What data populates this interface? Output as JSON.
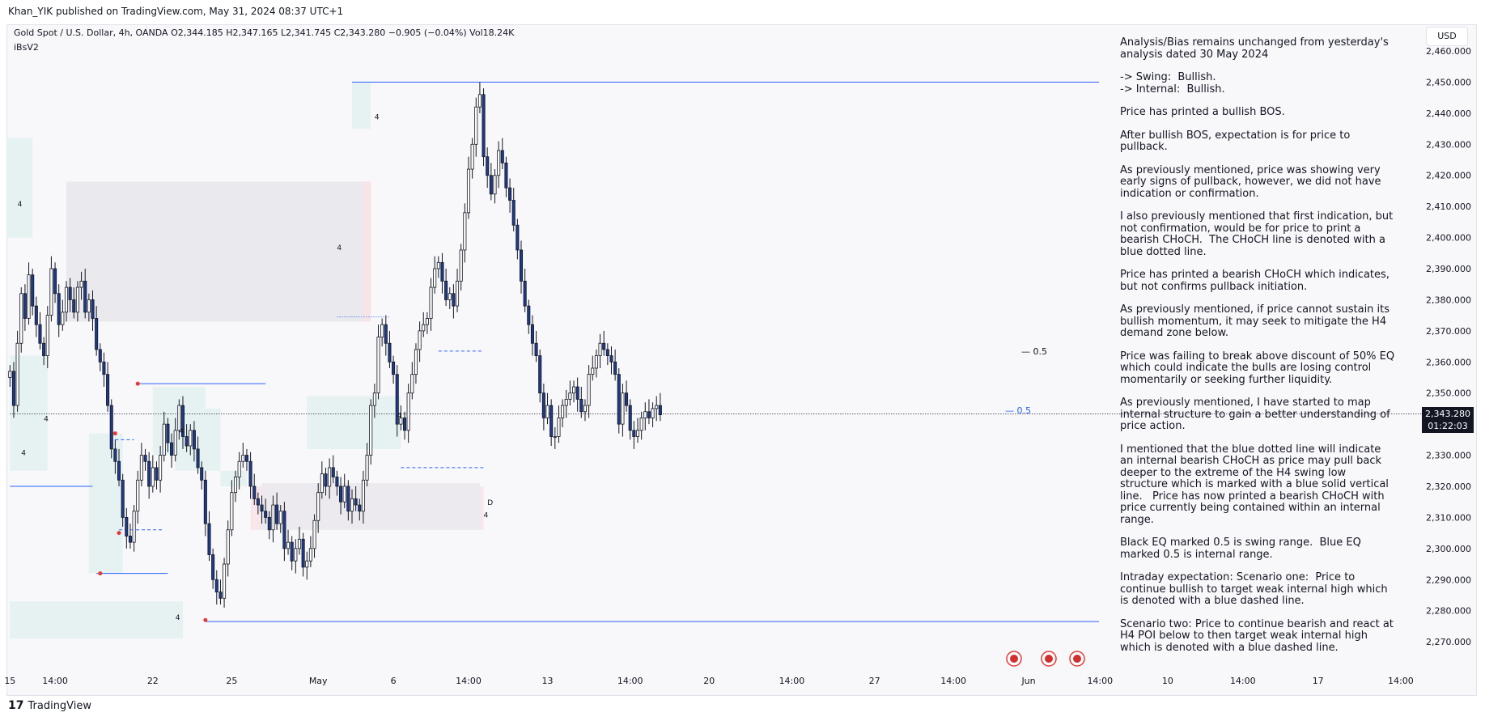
{
  "header": {
    "published_by": "Khan_YIK published on TradingView.com, May 31, 2024 08:37 UTC+1"
  },
  "legend": {
    "symbol_line": "Gold Spot / U.S. Dollar, 4h, OANDA  O2,344.185  H2,347.165  L2,341.745  C2,343.280  −0.905 (−0.04%)  Vol18.24K",
    "indicator": "iBsV2"
  },
  "currency": "USD",
  "current_price": {
    "price": "2,343.280",
    "countdown": "01:22:03"
  },
  "brand": {
    "logo": "17",
    "name": "TradingView"
  },
  "analysis": [
    "Analysis/Bias remains unchanged from yesterday's analysis dated 30 May 2024",
    "-> Swing:  Bullish.\n-> Internal:  Bullish.",
    "Price has printed a bullish BOS.",
    "After bullish BOS, expectation is for price to pullback.",
    "As previously mentioned, price was showing very early signs of pullback, however, we did not have indication or confirmation.",
    "I also previously mentioned that first indication, but not confirmation, would be for price to print a bearish CHoCH.  The CHoCH line is denoted with a blue dotted line.",
    "Price has printed a bearish CHoCH which indicates, but not confirms pullback initiation.",
    "As previously mentioned, if price cannot sustain its bullish momentum, it may seek to mitigate the H4 demand zone below.",
    "Price was failing to break above discount of 50% EQ which could indicate the bulls are losing control momentarily or seeking further liquidity.",
    "As previously mentioned, I have started to map internal structure to gain a better understanding of price action.",
    "I mentioned that the blue dotted line will indicate an internal bearish CHoCH as price may pull back deeper to the extreme of the H4 swing low structure which is marked with a blue solid vertical line.   Price has now printed a bearish CHoCH with price currently being contained within an internal range.",
    "Black EQ marked 0.5 is swing range.  Blue EQ marked 0.5 is internal range.",
    "Intraday expectation: Scenario one:  Price to continue bullish to target weak internal high which is denoted with a blue dashed line.",
    "Scenario two: Price to continue bearish and react at H4 POI below to then target weak internal high which is denoted with a blue dashed line."
  ],
  "chart_data": {
    "type": "candlestick",
    "symbol": "Gold Spot / U.S. Dollar",
    "timeframe": "4h",
    "y_ticks": [
      2270,
      2280,
      2290,
      2300,
      2310,
      2320,
      2330,
      2340,
      2350,
      2360,
      2370,
      2380,
      2390,
      2400,
      2410,
      2420,
      2430,
      2440,
      2450,
      2460
    ],
    "y_tick_labels": [
      "2,270.000",
      "2,280.000",
      "2,290.000",
      "2,300.000",
      "2,310.000",
      "2,320.000",
      "2,330.000",
      "2,340.000",
      "2,350.000",
      "2,360.000",
      "2,370.000",
      "2,380.000",
      "2,390.000",
      "2,400.000",
      "2,410.000",
      "2,420.000",
      "2,430.000",
      "2,440.000",
      "2,450.000",
      "2,460.000"
    ],
    "ylim": [
      2263,
      2466
    ],
    "x_labels": [
      "15",
      "14:00",
      "22",
      "25",
      "May",
      "6",
      "14:00",
      "13",
      "14:00",
      "20",
      "14:00",
      "27",
      "14:00",
      "Jun",
      "14:00",
      "10",
      "14:00",
      "17",
      "14:00"
    ],
    "x_label_index": [
      0,
      12,
      38,
      59,
      82,
      102,
      122,
      143,
      165,
      186,
      208,
      230,
      251,
      271,
      290,
      308,
      328,
      348,
      370
    ],
    "xlim": [
      0,
      380
    ],
    "closes": [
      2357,
      2346,
      2366,
      2382,
      2374,
      2388,
      2378,
      2372,
      2366,
      2362,
      2375,
      2390,
      2382,
      2372,
      2376,
      2384,
      2380,
      2376,
      2384,
      2386,
      2376,
      2380,
      2374,
      2364,
      2360,
      2356,
      2346,
      2332,
      2328,
      2322,
      2310,
      2304,
      2302,
      2312,
      2322,
      2330,
      2328,
      2320,
      2326,
      2322,
      2330,
      2340,
      2334,
      2330,
      2338,
      2346,
      2336,
      2333,
      2338,
      2332,
      2326,
      2322,
      2308,
      2298,
      2290,
      2286,
      2284,
      2295,
      2306,
      2318,
      2323,
      2328,
      2330,
      2328,
      2320,
      2316,
      2314,
      2312,
      2310,
      2306,
      2314,
      2308,
      2312,
      2300,
      2302,
      2296,
      2300,
      2303,
      2294,
      2296,
      2300,
      2309,
      2318,
      2324,
      2320,
      2326,
      2323,
      2320,
      2315,
      2320,
      2312,
      2316,
      2314,
      2312,
      2322,
      2330,
      2346,
      2350,
      2368,
      2372,
      2366,
      2360,
      2356,
      2340,
      2342,
      2338,
      2350,
      2356,
      2364,
      2370,
      2372,
      2374,
      2384,
      2390,
      2392,
      2386,
      2380,
      2382,
      2378,
      2386,
      2396,
      2408,
      2422,
      2430,
      2442,
      2446,
      2426,
      2420,
      2414,
      2420,
      2428,
      2424,
      2416,
      2412,
      2404,
      2396,
      2386,
      2378,
      2372,
      2366,
      2362,
      2350,
      2342,
      2346,
      2336,
      2336,
      2342,
      2346,
      2348,
      2350,
      2352,
      2348,
      2344,
      2346,
      2356,
      2358,
      2362,
      2366,
      2364,
      2362,
      2360,
      2356,
      2340,
      2350,
      2346,
      2338,
      2336,
      2338,
      2342,
      2344,
      2342,
      2345,
      2346,
      2343
    ],
    "annotations": {
      "swing_eq_label": "0.5",
      "internal_eq_label": "0.5",
      "swing_high_level": 2450,
      "internal_high_level": 2363.5,
      "swing_low_level": 2276.5,
      "internal_low_level": 2326,
      "choch_level": 2374.5,
      "demand_zone": [
        2306,
        2320
      ],
      "zone_label": "4",
      "d_label": "D"
    }
  }
}
